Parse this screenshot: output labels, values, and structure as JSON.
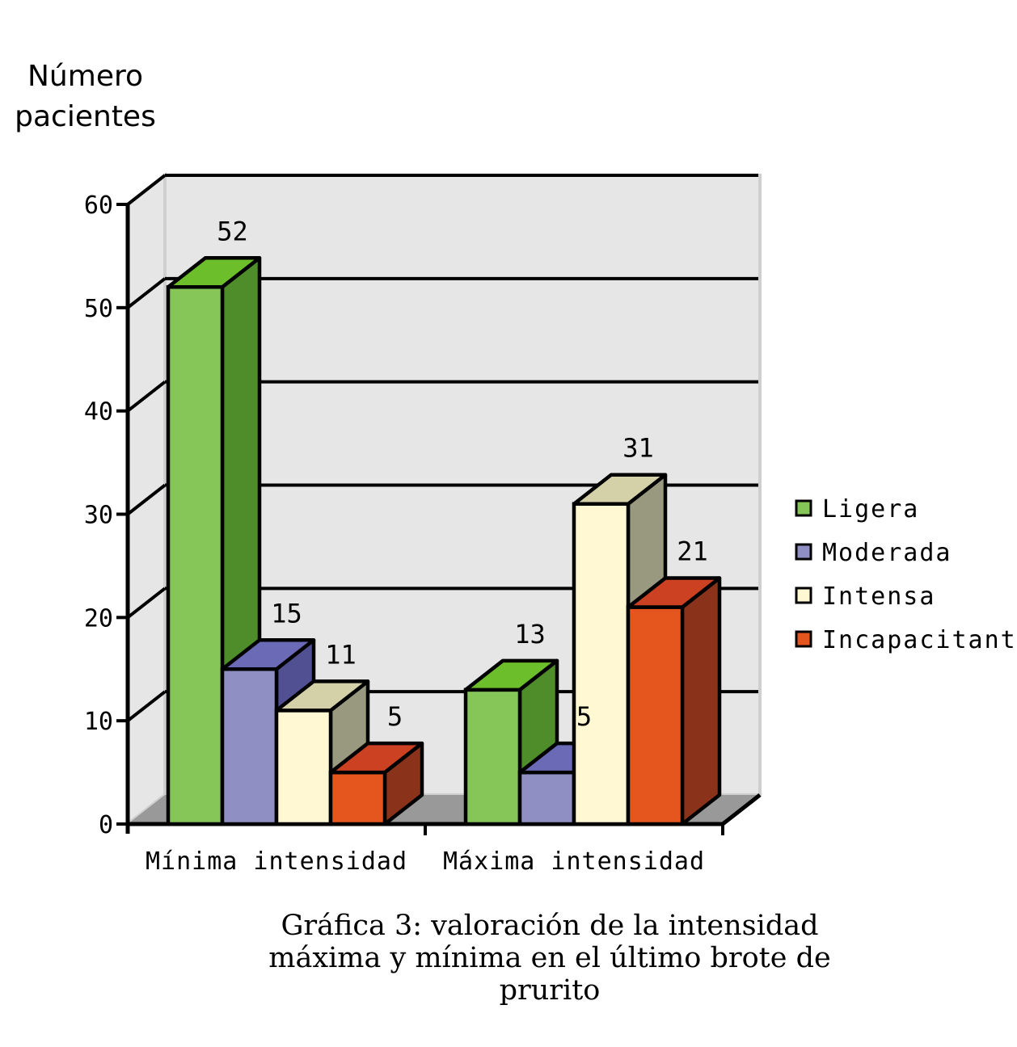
{
  "chart_data": {
    "type": "bar",
    "title": "",
    "ylabel_lines": [
      "Número",
      "pacientes"
    ],
    "xlabel": "",
    "categories": [
      "Mínima intensidad",
      "Máxima intensidad"
    ],
    "series": [
      {
        "name": "Ligera",
        "values": [
          52,
          13
        ],
        "color": "#86c659",
        "color_side": "#4f8c2a",
        "color_top": "#6cbe2a"
      },
      {
        "name": "Moderada",
        "values": [
          15,
          5
        ],
        "color": "#8f8fc4",
        "color_side": "#505092",
        "color_top": "#6a6ab6"
      },
      {
        "name": "Intensa",
        "values": [
          11,
          31
        ],
        "color": "#fff8d2",
        "color_side": "#999980",
        "color_top": "#d4d1a8"
      },
      {
        "name": "Incapacitante",
        "values": [
          5,
          21
        ],
        "color": "#e5561f",
        "color_side": "#8b331a",
        "color_top": "#cc4122"
      }
    ],
    "ylim": [
      0,
      60
    ],
    "yticks": [
      "0",
      "10",
      "20",
      "30",
      "40",
      "50",
      "60"
    ],
    "grid": true,
    "legend": "right",
    "caption_lines": [
      "Gráfica 3: valoración de la intensidad",
      "máxima y mínima en el último brote de",
      "prurito"
    ]
  }
}
